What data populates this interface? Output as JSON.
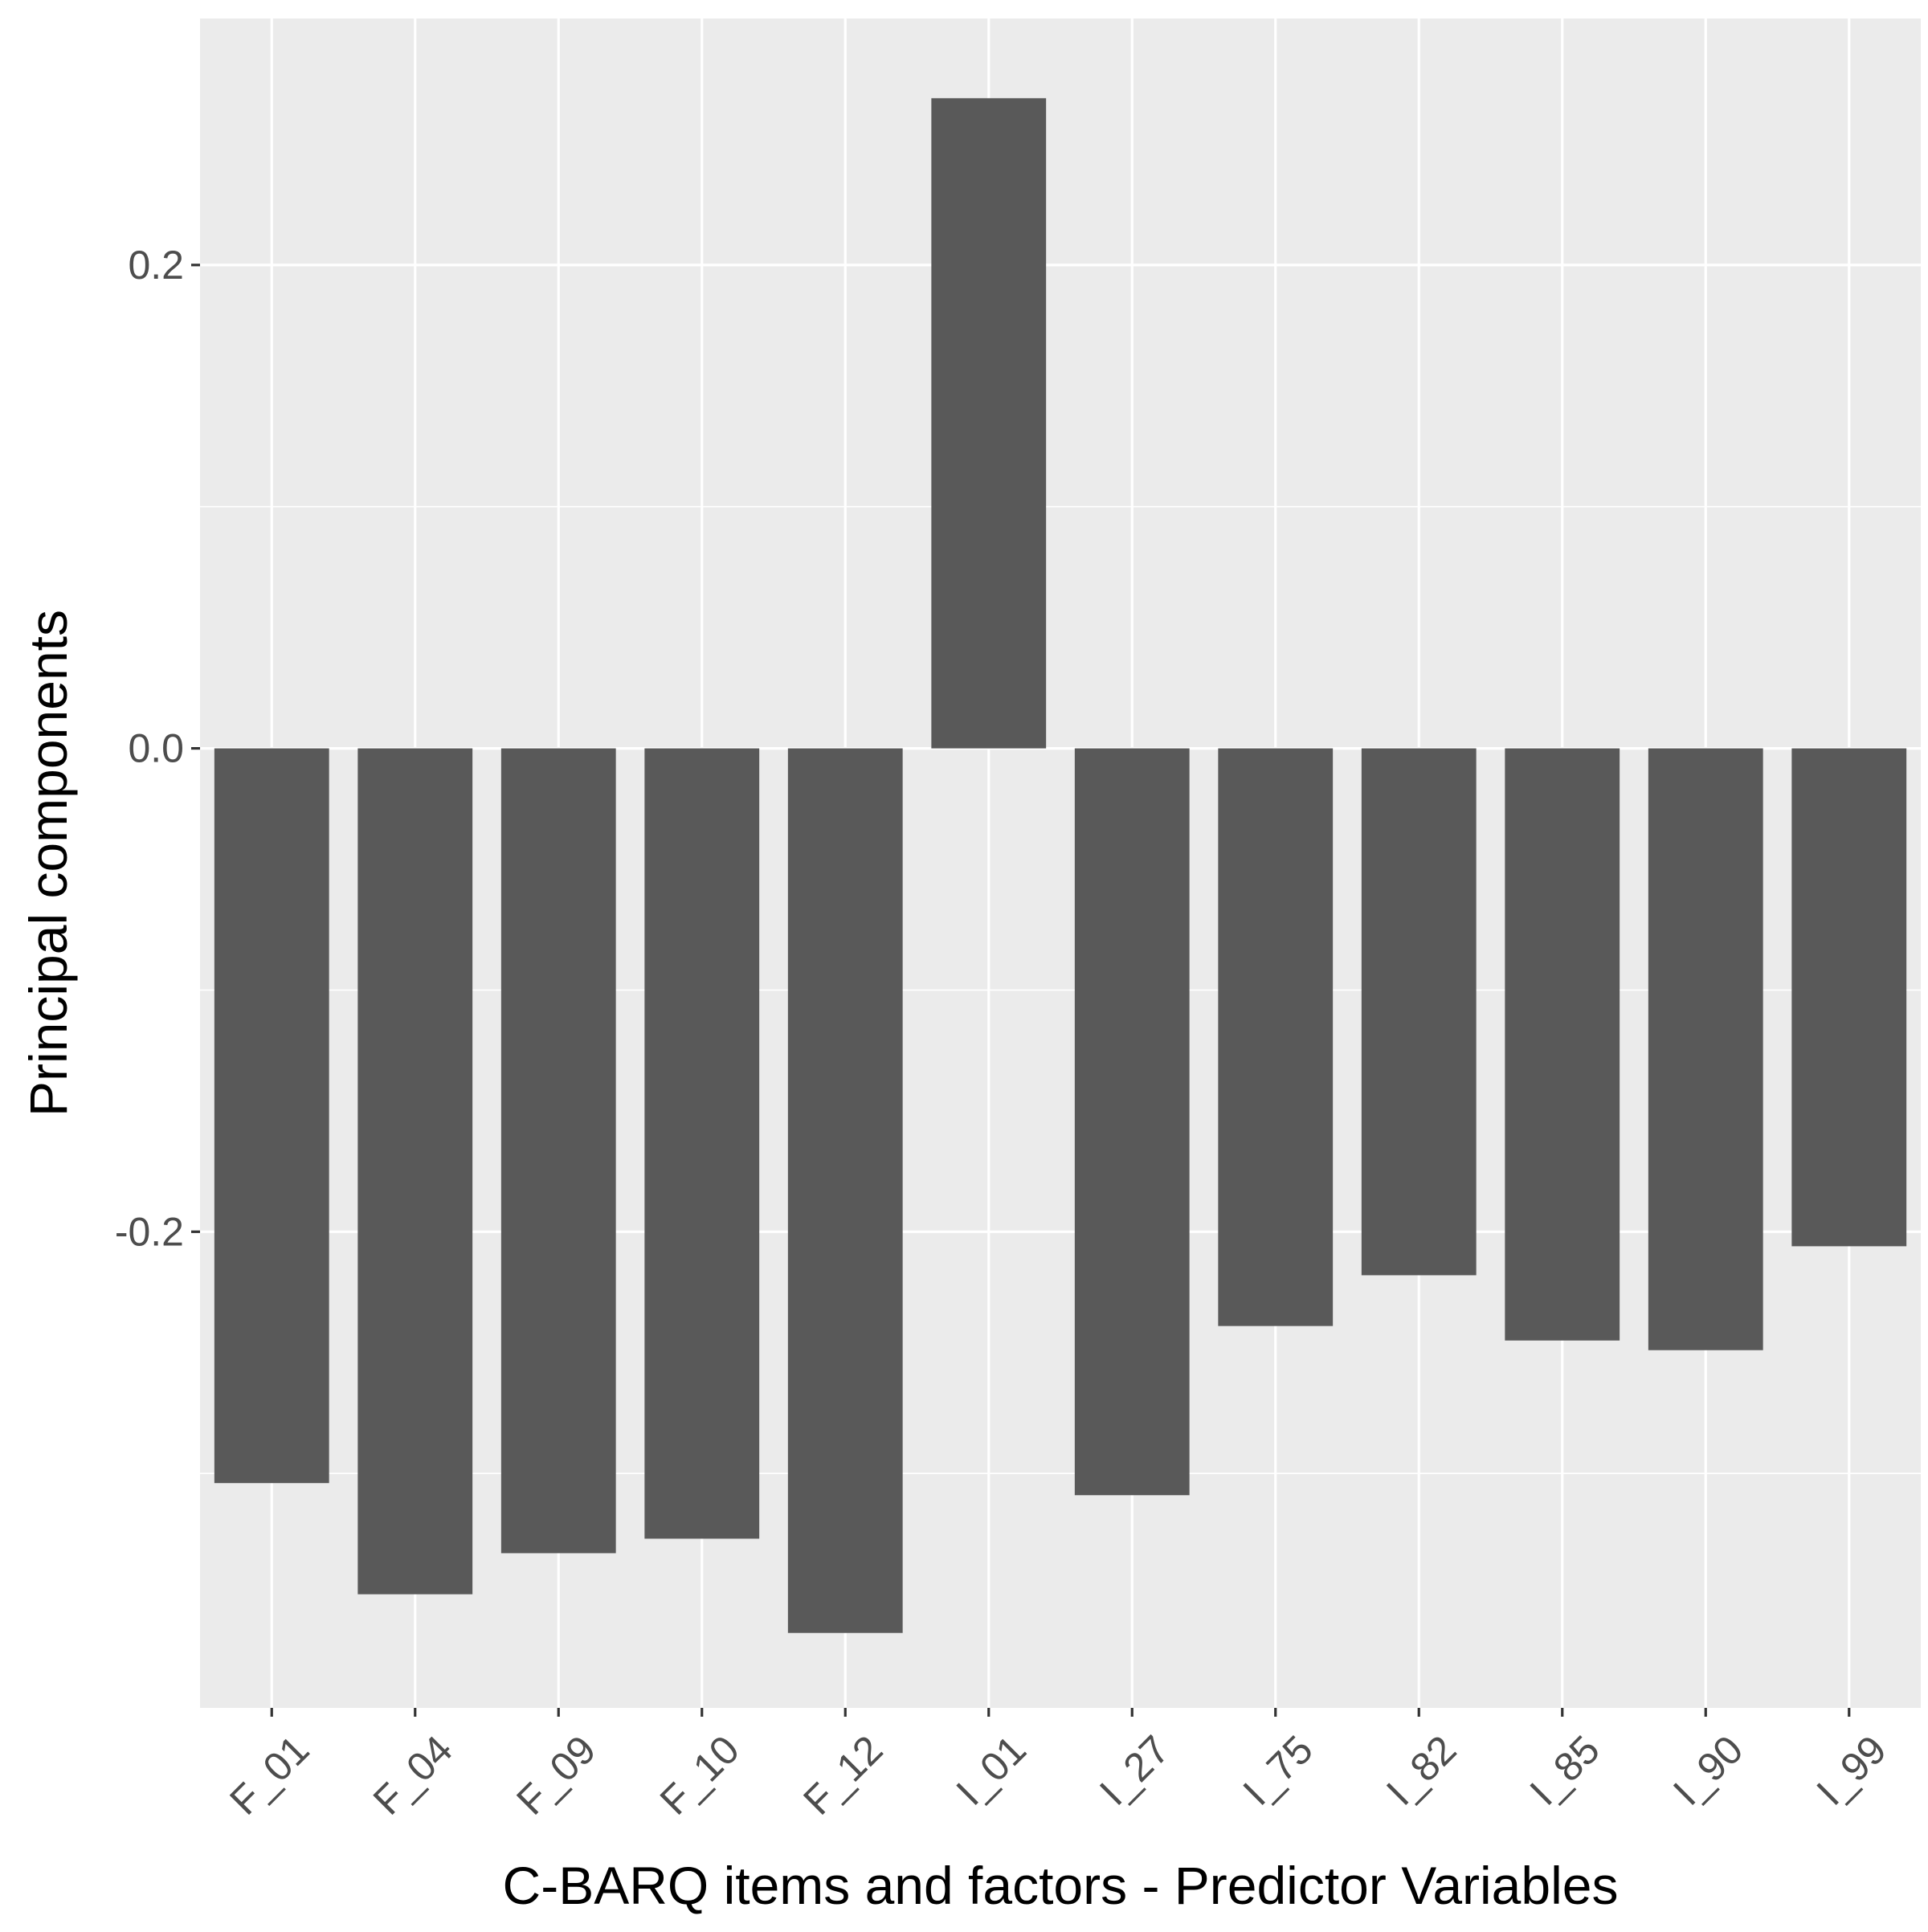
{
  "chart_data": {
    "type": "bar",
    "xlabel": "C-BARQ items and factors - Predictor Variables",
    "ylabel": "Principal components",
    "categories": [
      "F_01",
      "F_04",
      "F_09",
      "F_10",
      "F_12",
      "I_01",
      "I_27",
      "I_75",
      "I_82",
      "I_85",
      "I_90",
      "I_99"
    ],
    "values": [
      -0.304,
      -0.35,
      -0.333,
      -0.327,
      -0.366,
      0.269,
      -0.309,
      -0.239,
      -0.218,
      -0.245,
      -0.249,
      -0.206
    ],
    "ylim": [
      -0.397,
      0.302
    ],
    "yticks": [
      {
        "value": 0.2,
        "label": "0.2"
      },
      {
        "value": 0.0,
        "label": "0.0"
      },
      {
        "value": -0.2,
        "label": "-0.2"
      }
    ],
    "y_minor_gridlines": [
      0.1,
      -0.1,
      -0.3
    ],
    "grid": true,
    "colors": {
      "panel": "#ebebeb",
      "gridline": "#ffffff",
      "bar": "#595959",
      "tick_label": "#4d4d4d",
      "tick_mark": "#333333",
      "axis_title": "#000000"
    }
  }
}
